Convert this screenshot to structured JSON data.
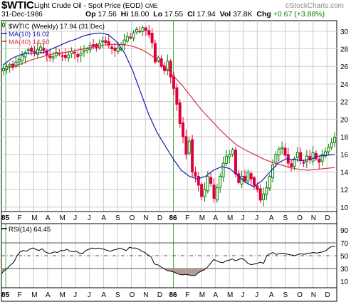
{
  "header": {
    "symbol": "$WTIC",
    "name": "Light Crude Oil - Spot Price (EOD)",
    "exchange": "CME",
    "credit": "StockCharts.com",
    "date": "31-Dec-1986",
    "open_label": "Op",
    "open": "17.56",
    "high_label": "Hi",
    "high": "18.00",
    "low_label": "Lo",
    "low": "17.55",
    "close_label": "Cl",
    "close": "17.94",
    "volume_label": "Vol",
    "volume": "37.8K",
    "change_label": "Chg",
    "change": "+0.67 (+3.88%)"
  },
  "colors": {
    "up": "#008000",
    "down": "#e0003a",
    "ma10": "#1a1ab3",
    "ma40": "#d9304a",
    "rsi": "#000000",
    "rsi_fill": "#b39a95",
    "grid": "#cccccc",
    "marker": "#3cb33c"
  },
  "chart_data": [
    {
      "type": "candlestick",
      "legend": [
        {
          "label": "$WTIC (Weekly) 17.94 (31 Dec)",
          "style": "candle"
        },
        {
          "label": "MA(10) 16.02",
          "color": "#1a1ab3"
        },
        {
          "label": "MA(40) 14.50",
          "color": "#d9304a"
        }
      ],
      "y_ticks": [
        10,
        12,
        14,
        16,
        18,
        20,
        22,
        24,
        26,
        28,
        30
      ],
      "ylim": [
        9.5,
        31.2
      ],
      "x_labels": [
        "85",
        "F",
        "M",
        "A",
        "M",
        "J",
        "J",
        "A",
        "S",
        "O",
        "N",
        "D",
        "86",
        "F",
        "M",
        "A",
        "M",
        "J",
        "J",
        "A",
        "S",
        "O",
        "N",
        "D"
      ],
      "weekly_close": [
        25.8,
        26.0,
        26.2,
        25.9,
        26.5,
        26.8,
        27.2,
        27.6,
        27.9,
        27.7,
        27.5,
        27.9,
        28.2,
        27.8,
        27.3,
        27.0,
        27.1,
        27.6,
        27.4,
        27.2,
        27.0,
        27.3,
        27.7,
        27.5,
        27.1,
        27.5,
        27.8,
        28.0,
        28.4,
        28.3,
        28.1,
        28.6,
        28.9,
        28.7,
        28.4,
        28.0,
        27.8,
        28.1,
        28.5,
        29.0,
        29.4,
        29.3,
        29.8,
        30.2,
        30.0,
        30.4,
        30.1,
        29.6,
        28.7,
        26.5,
        27.0,
        26.0,
        25.5,
        26.6,
        24.8,
        23.5,
        21.7,
        19.5,
        18.0,
        16.0,
        17.5,
        14.0,
        13.5,
        12.5,
        11.2,
        12.0,
        13.5,
        12.7,
        11.0,
        12.2,
        13.5,
        15.0,
        15.8,
        16.0,
        16.5,
        13.8,
        12.8,
        13.5,
        13.0,
        14.0,
        13.2,
        12.5,
        12.0,
        10.8,
        11.5,
        12.2,
        13.5,
        14.8,
        16.0,
        16.6,
        16.8,
        15.9,
        15.0,
        14.6,
        15.5,
        16.2,
        15.3,
        15.0,
        15.8,
        15.4,
        16.2,
        15.5,
        15.1,
        16.0,
        16.3,
        16.8,
        17.3,
        17.94
      ],
      "ma10_close": [
        26.2,
        26.9,
        27.3,
        27.5,
        27.5,
        27.6,
        28.0,
        28.4,
        28.8,
        29.1,
        29.5,
        29.7,
        29.8,
        29.6,
        28.8,
        27.5,
        25.5,
        23.0,
        20.5,
        18.5,
        17.0,
        15.5,
        14.2,
        13.5,
        13.2,
        13.5,
        14.2,
        14.6,
        14.4,
        13.6,
        12.8,
        12.3,
        13.0,
        14.0,
        15.0,
        15.5,
        15.4,
        15.3,
        15.4,
        15.8,
        15.9,
        16.0
      ],
      "ma40_close": [
        25.7,
        26.0,
        26.3,
        26.7,
        27.0,
        27.3,
        27.5,
        27.6,
        27.8,
        28.0,
        28.2,
        28.4,
        28.5,
        28.5,
        28.4,
        28.1,
        27.6,
        26.9,
        26.0,
        24.9,
        23.8,
        22.5,
        21.2,
        20.1,
        19.0,
        18.0,
        17.1,
        16.5,
        16.0,
        15.5,
        15.1,
        14.8,
        14.5,
        14.3,
        14.2,
        14.3,
        14.4,
        14.5
      ]
    },
    {
      "type": "line",
      "title": "RSI(14) 64.45",
      "y_ticks": [
        10,
        30,
        50,
        70,
        90
      ],
      "ylim": [
        0,
        100
      ],
      "reference_lines": [
        30,
        50,
        70
      ],
      "rsi_values": [
        22,
        27,
        31,
        36,
        40,
        50,
        56,
        58,
        57,
        60,
        62,
        60,
        58,
        61,
        56,
        54,
        54,
        56,
        55,
        58,
        58,
        60,
        57,
        56,
        57,
        54,
        53,
        58,
        60,
        62,
        61,
        62,
        61,
        60,
        58,
        57,
        59,
        60,
        62,
        60,
        58,
        63,
        62,
        62,
        60,
        57,
        55,
        51,
        48,
        37,
        36,
        33,
        30,
        27,
        26,
        25,
        23,
        21,
        20,
        21,
        20,
        19,
        19,
        23,
        26,
        28,
        32,
        38,
        44,
        42,
        40,
        39,
        42,
        43,
        45,
        42,
        44,
        46,
        43,
        38,
        36,
        37,
        38,
        40,
        38,
        50,
        53,
        55,
        52,
        53,
        54,
        53,
        52,
        51,
        50,
        52,
        53,
        52,
        54,
        54,
        55,
        54,
        55,
        56,
        58,
        62,
        65,
        64.45
      ]
    }
  ]
}
